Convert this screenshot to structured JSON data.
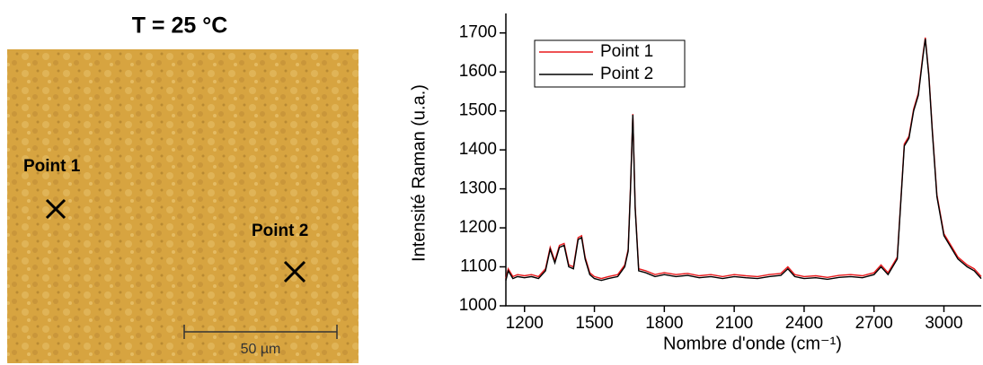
{
  "image_panel": {
    "title": "T = 25 °C",
    "labels": [
      "Point  1",
      "Point  2"
    ],
    "scale_label": "50 µm"
  },
  "chart_data": {
    "type": "line",
    "xlabel": "Nombre d'onde (cm⁻¹)",
    "ylabel": "Intensité Raman (u.a.)",
    "x": [
      1120,
      1130,
      1150,
      1170,
      1200,
      1230,
      1260,
      1290,
      1310,
      1330,
      1350,
      1370,
      1390,
      1410,
      1430,
      1445,
      1460,
      1480,
      1500,
      1530,
      1560,
      1600,
      1630,
      1645,
      1655,
      1665,
      1675,
      1690,
      1720,
      1760,
      1800,
      1850,
      1900,
      1950,
      2000,
      2050,
      2100,
      2150,
      2200,
      2250,
      2300,
      2330,
      2360,
      2400,
      2450,
      2500,
      2550,
      2600,
      2650,
      2700,
      2730,
      2760,
      2800,
      2830,
      2850,
      2870,
      2890,
      2910,
      2920,
      2935,
      2950,
      2970,
      3000,
      3030,
      3060,
      3100,
      3130,
      3160
    ],
    "series": [
      {
        "name": "Point 1",
        "color": "#e8191c",
        "values": [
          1070,
          1095,
          1075,
          1080,
          1077,
          1080,
          1075,
          1095,
          1150,
          1115,
          1155,
          1160,
          1105,
          1100,
          1175,
          1180,
          1125,
          1085,
          1075,
          1070,
          1075,
          1080,
          1105,
          1145,
          1305,
          1492,
          1255,
          1095,
          1090,
          1080,
          1085,
          1080,
          1083,
          1077,
          1080,
          1075,
          1080,
          1077,
          1075,
          1080,
          1083,
          1100,
          1080,
          1075,
          1077,
          1073,
          1078,
          1080,
          1077,
          1085,
          1105,
          1085,
          1125,
          1415,
          1435,
          1505,
          1545,
          1645,
          1688,
          1595,
          1455,
          1285,
          1185,
          1155,
          1125,
          1105,
          1095,
          1075
        ]
      },
      {
        "name": "Point 2",
        "color": "#000000",
        "values": [
          1065,
          1090,
          1070,
          1075,
          1072,
          1075,
          1070,
          1090,
          1145,
          1110,
          1150,
          1155,
          1100,
          1095,
          1170,
          1175,
          1120,
          1080,
          1070,
          1065,
          1070,
          1075,
          1100,
          1140,
          1300,
          1490,
          1250,
          1090,
          1085,
          1075,
          1080,
          1075,
          1078,
          1072,
          1075,
          1070,
          1075,
          1072,
          1070,
          1075,
          1078,
          1095,
          1075,
          1070,
          1072,
          1068,
          1073,
          1075,
          1072,
          1080,
          1100,
          1080,
          1120,
          1410,
          1430,
          1500,
          1540,
          1640,
          1685,
          1590,
          1450,
          1280,
          1180,
          1150,
          1120,
          1100,
          1090,
          1070
        ]
      }
    ],
    "xlim": [
      1120,
      3160
    ],
    "xticks": [
      1200,
      1500,
      1800,
      2100,
      2400,
      2700,
      3000
    ],
    "ylim": [
      1000,
      1750
    ],
    "yticks": [
      1000,
      1100,
      1200,
      1300,
      1400,
      1500,
      1600,
      1700
    ],
    "legend": "top-left",
    "grid": false
  }
}
